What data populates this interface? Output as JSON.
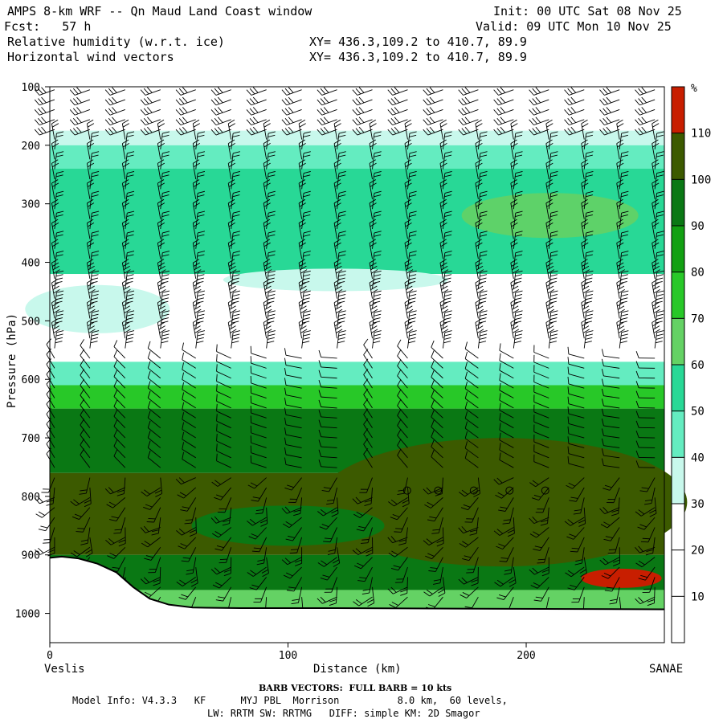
{
  "header": {
    "title": "AMPS 8-km WRF -- Qn Maud Land Coast window",
    "fcst": "Fcst:   57 h",
    "init": "Init: 00 UTC Sat 08 Nov 25",
    "valid": "Valid: 09 UTC Mon 10 Nov 25",
    "field1": "Relative humidity (w.r.t. ice)",
    "field2": "Horizontal wind vectors",
    "xy1": "XY= 436.3,109.2 to 410.7, 89.9",
    "xy2": "XY= 436.3,109.2 to 410.7, 89.9"
  },
  "colorbar": {
    "unit": "%",
    "levels": [
      10,
      20,
      30,
      40,
      50,
      60,
      70,
      80,
      90,
      100,
      110
    ],
    "labels": [
      "10",
      "20",
      "30",
      "40",
      "50",
      "60",
      "70",
      "80",
      "90",
      "100",
      "110"
    ],
    "colors": [
      "#ffffff",
      "#ffffff",
      "#ffffff",
      "#c8f8ec",
      "#64ecc0",
      "#28d896",
      "#64d264",
      "#28c828",
      "#12a012",
      "#0a7814",
      "#3c5a00",
      "#c81e00"
    ]
  },
  "footer": {
    "barb_note": "BARB VECTORS:  FULL BARB = 10 kts",
    "model_info": "Model Info: V4.3.3   KF      MYJ PBL  Morrison          8.0 km,  60 levels,",
    "model_info2": "LW: RRTM SW: RRTMG   DIFF: simple KM: 2D Smagor"
  },
  "chart_data": {
    "type": "heatmap",
    "title": "Relative humidity (w.r.t. ice)",
    "xlabel": "Distance (km)",
    "ylabel": "Pressure (hPa)",
    "xlim": [
      0,
      258
    ],
    "ylim": [
      1050,
      100
    ],
    "x_ticks": [
      0,
      100,
      200
    ],
    "x_tick_labels": [
      "0",
      "100",
      "200"
    ],
    "y_ticks": [
      100,
      200,
      300,
      400,
      500,
      600,
      700,
      800,
      900,
      1000
    ],
    "y_tick_labels": [
      "100",
      "200",
      "300",
      "400",
      "500",
      "600",
      "700",
      "800",
      "900",
      "1000"
    ],
    "left_label": "Veslis",
    "right_label": "SANAE",
    "terrain_surface_hPa": [
      [
        0,
        905
      ],
      [
        5,
        903
      ],
      [
        12,
        906
      ],
      [
        20,
        915
      ],
      [
        28,
        930
      ],
      [
        35,
        955
      ],
      [
        42,
        975
      ],
      [
        50,
        985
      ],
      [
        60,
        990
      ],
      [
        80,
        991
      ],
      [
        120,
        991
      ],
      [
        180,
        992
      ],
      [
        258,
        993
      ]
    ],
    "rh_layers": [
      {
        "p_top": 175,
        "p_bot": 200,
        "rh": 35
      },
      {
        "p_top": 200,
        "p_bot": 240,
        "rh": 45
      },
      {
        "p_top": 240,
        "p_bot": 420,
        "rh": 50
      },
      {
        "p_top": 420,
        "p_bot": 570,
        "rh": 20
      },
      {
        "p_top": 570,
        "p_bot": 610,
        "rh": 45
      },
      {
        "p_top": 610,
        "p_bot": 650,
        "rh": 75
      },
      {
        "p_top": 650,
        "p_bot": 760,
        "rh": 95
      },
      {
        "p_top": 760,
        "p_bot": 900,
        "rh": 103
      },
      {
        "p_top": 900,
        "p_bot": 960,
        "rh": 90
      },
      {
        "p_top": 960,
        "p_bot": 993,
        "rh": 60
      }
    ],
    "wind_barbs": "horizontal wind vectors on a regular grid, roughly 14 columns by 55 levels; calm circles near 790 hPa between 150 and 210 km",
    "calm_points": [
      [
        150,
        790
      ],
      [
        163,
        790
      ],
      [
        178,
        790
      ],
      [
        193,
        790
      ],
      [
        208,
        790
      ]
    ]
  }
}
